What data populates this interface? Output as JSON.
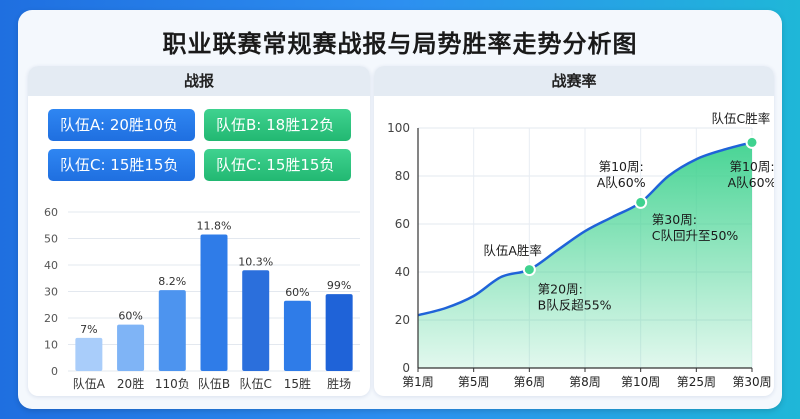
{
  "title": "职业联赛常规赛战报与局势胜率走势分析图",
  "left_panel": {
    "header": "战报",
    "records": [
      {
        "text": "队伍A: 20胜10负",
        "color": "blue"
      },
      {
        "text": "队伍B: 18胜12负",
        "color": "green"
      },
      {
        "text": "队伍C: 15胜15负",
        "color": "blue"
      },
      {
        "text": "队伍C: 15胜15负",
        "color": "green"
      }
    ]
  },
  "right_panel": {
    "header": "战赛率"
  },
  "chart_data": [
    {
      "type": "bar",
      "categories": [
        "队伍A",
        "20胜",
        "110负",
        "队伍B",
        "队伍C",
        "15胜",
        "胜场"
      ],
      "values": [
        12.5,
        17.5,
        30.5,
        51.5,
        38,
        26.5,
        29
      ],
      "data_labels": [
        "7%",
        "60%",
        "8.2%",
        "11.8%",
        "10.3%",
        "60%",
        "99%"
      ],
      "ylim": [
        0,
        60
      ],
      "yticks": [
        0,
        10,
        20,
        30,
        40,
        50,
        60
      ],
      "colors": [
        "#a9cdfa",
        "#7fb4f6",
        "#4d94ef",
        "#2f7ce8",
        "#2b6fdc",
        "#2f7ce8",
        "#1f63d8"
      ],
      "grid": true
    },
    {
      "type": "area",
      "categories": [
        "第1周",
        "第5周",
        "第6周",
        "第8周",
        "第10周",
        "第25周",
        "第30周"
      ],
      "x": [
        0,
        0.5,
        1,
        1.5,
        2,
        2.5,
        3,
        3.5,
        4,
        4.5,
        5,
        5.5,
        6
      ],
      "values": [
        22,
        25,
        30,
        38,
        41,
        49,
        57,
        63,
        69,
        80,
        87,
        91,
        94
      ],
      "ylim": [
        0,
        100
      ],
      "yticks": [
        0,
        20,
        40,
        60,
        80,
        100
      ],
      "markers": [
        {
          "x": 2,
          "y": 41
        },
        {
          "x": 4,
          "y": 69
        },
        {
          "x": 6,
          "y": 94
        }
      ],
      "annotations": [
        {
          "text": [
            "队伍A胜率"
          ],
          "x": 1.7,
          "y": 47,
          "anchor": "middle"
        },
        {
          "text": [
            "第20周:",
            "B队反超55%"
          ],
          "x": 2.15,
          "y": 31,
          "anchor": "start"
        },
        {
          "text": [
            "第10周:",
            "A队60%"
          ],
          "x": 3.65,
          "y": 82,
          "anchor": "middle"
        },
        {
          "text": [
            "第30周:",
            "C队回升至50%"
          ],
          "x": 4.2,
          "y": 60,
          "anchor": "start"
        },
        {
          "text": [
            "队伍C胜率"
          ],
          "x": 5.8,
          "y": 102,
          "anchor": "middle"
        },
        {
          "text": [
            "第10周:",
            "A队60%"
          ],
          "x": 6.0,
          "y": 82,
          "anchor": "middle"
        }
      ],
      "line_color": "#1f63d8",
      "fill_color": "#3fd28f",
      "grid": true
    }
  ]
}
